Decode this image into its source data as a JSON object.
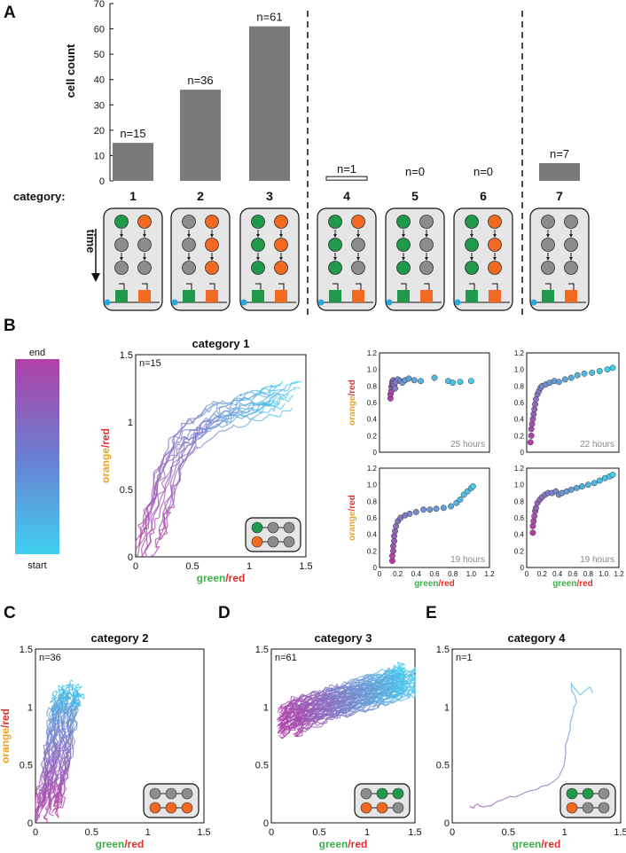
{
  "panel_labels": [
    "A",
    "B",
    "C",
    "D",
    "E"
  ],
  "colors": {
    "bar": "#7a7a7a",
    "green": "#1f9a4a",
    "orange": "#f26a21",
    "gray_node": "#8c8c8c",
    "cell_bg": "#e6e6e6",
    "blue_dot": "#29a8e0",
    "gradient_start": "#3fd0f0",
    "gradient_end": "#b040a8",
    "ylabel_orange": "#f0a020",
    "ylabel_red": "#e03030",
    "xlabel_green": "#3cb04a",
    "hours_gray": "#888888"
  },
  "chart_data": [
    {
      "id": "A",
      "type": "bar",
      "ylabel": "cell count",
      "yticks": [
        0,
        10,
        20,
        30,
        40,
        50,
        60,
        70
      ],
      "ylim": [
        0,
        70
      ],
      "category_prefix": "category:",
      "time_label": "time",
      "categories": [
        "1",
        "2",
        "3",
        "4",
        "5",
        "6",
        "7"
      ],
      "values": [
        15,
        36,
        61,
        1,
        0,
        0,
        7
      ],
      "bar_labels": [
        "n=15",
        "n=36",
        "n=61",
        "n=1",
        "n=0",
        "n=0",
        "n=7"
      ],
      "separators_after": [
        "3",
        "6"
      ]
    },
    {
      "id": "B-colorbar",
      "type": "colorbar",
      "top_label": "end",
      "bottom_label": "start"
    },
    {
      "id": "B",
      "type": "line",
      "title": "category 1",
      "n_label": "n=15",
      "xlabel_parts": [
        "green",
        "/red"
      ],
      "ylabel_parts": [
        "orange",
        "/red"
      ],
      "xlim": [
        0,
        1.5
      ],
      "ylim": [
        0,
        1.5
      ],
      "xticks": [
        "0",
        "0.5",
        "1",
        "1.5"
      ],
      "yticks": [
        "0",
        "0.5",
        "1",
        "1.5"
      ],
      "n_traces": 15,
      "trace_path": [
        [
          0.12,
          0.05
        ],
        [
          0.2,
          0.3
        ],
        [
          0.3,
          0.6
        ],
        [
          0.45,
          0.85
        ],
        [
          0.6,
          0.95
        ],
        [
          0.8,
          1.05
        ],
        [
          1.0,
          1.1
        ],
        [
          1.2,
          1.15
        ],
        [
          1.35,
          1.2
        ]
      ],
      "inset": "cat1"
    },
    {
      "id": "B-s1",
      "type": "scatter",
      "hours": "25 hours",
      "xlim": [
        0,
        1.2
      ],
      "ylim": [
        0,
        1.2
      ],
      "xticks": [],
      "yticks": [
        "0",
        "0.2",
        "0.4",
        "0.6",
        "0.8",
        "1.0",
        "1.2"
      ],
      "ylabel_parts": [
        "orange",
        "/red"
      ],
      "points": [
        [
          0.12,
          0.65
        ],
        [
          0.12,
          0.7
        ],
        [
          0.13,
          0.74
        ],
        [
          0.13,
          0.79
        ],
        [
          0.14,
          0.82
        ],
        [
          0.14,
          0.85
        ],
        [
          0.15,
          0.87
        ],
        [
          0.15,
          0.83
        ],
        [
          0.16,
          0.8
        ],
        [
          0.17,
          0.77
        ],
        [
          0.18,
          0.85
        ],
        [
          0.2,
          0.88
        ],
        [
          0.23,
          0.86
        ],
        [
          0.25,
          0.84
        ],
        [
          0.28,
          0.87
        ],
        [
          0.32,
          0.89
        ],
        [
          0.38,
          0.87
        ],
        [
          0.45,
          0.86
        ],
        [
          0.6,
          0.9
        ],
        [
          0.75,
          0.86
        ],
        [
          0.8,
          0.84
        ],
        [
          0.88,
          0.85
        ],
        [
          1.0,
          0.86
        ]
      ]
    },
    {
      "id": "B-s2",
      "type": "scatter",
      "hours": "22 hours",
      "xlim": [
        0,
        1.2
      ],
      "ylim": [
        0,
        1.2
      ],
      "xticks": [],
      "yticks": [
        "0",
        "0.2",
        "0.4",
        "0.6",
        "0.8",
        "1.0",
        "1.2"
      ],
      "points": [
        [
          0.05,
          0.12
        ],
        [
          0.06,
          0.2
        ],
        [
          0.06,
          0.28
        ],
        [
          0.07,
          0.34
        ],
        [
          0.08,
          0.4
        ],
        [
          0.09,
          0.46
        ],
        [
          0.1,
          0.52
        ],
        [
          0.11,
          0.58
        ],
        [
          0.12,
          0.64
        ],
        [
          0.14,
          0.7
        ],
        [
          0.16,
          0.74
        ],
        [
          0.18,
          0.78
        ],
        [
          0.2,
          0.8
        ],
        [
          0.25,
          0.82
        ],
        [
          0.3,
          0.84
        ],
        [
          0.36,
          0.86
        ],
        [
          0.42,
          0.85
        ],
        [
          0.5,
          0.88
        ],
        [
          0.58,
          0.9
        ],
        [
          0.66,
          0.93
        ],
        [
          0.75,
          0.95
        ],
        [
          0.85,
          0.96
        ],
        [
          0.95,
          0.98
        ],
        [
          1.05,
          1.0
        ],
        [
          1.12,
          1.02
        ]
      ]
    },
    {
      "id": "B-s3",
      "type": "scatter",
      "hours": "19 hours",
      "xlim": [
        0,
        1.2
      ],
      "ylim": [
        0,
        1.2
      ],
      "xticks": [
        "0",
        "0.2",
        "0.4",
        "0.6",
        "0.8",
        "1.0",
        "1.2"
      ],
      "yticks": [
        "0",
        "0.2",
        "0.4",
        "0.6",
        "0.8",
        "1.0",
        "1.2"
      ],
      "xlabel_parts": [
        "green",
        "/red"
      ],
      "ylabel_parts": [
        "orange",
        "/red"
      ],
      "points": [
        [
          0.14,
          0.08
        ],
        [
          0.14,
          0.14
        ],
        [
          0.15,
          0.2
        ],
        [
          0.15,
          0.26
        ],
        [
          0.16,
          0.32
        ],
        [
          0.16,
          0.38
        ],
        [
          0.17,
          0.44
        ],
        [
          0.18,
          0.5
        ],
        [
          0.2,
          0.56
        ],
        [
          0.23,
          0.6
        ],
        [
          0.28,
          0.63
        ],
        [
          0.33,
          0.65
        ],
        [
          0.4,
          0.67
        ],
        [
          0.48,
          0.7
        ],
        [
          0.55,
          0.7
        ],
        [
          0.62,
          0.71
        ],
        [
          0.7,
          0.72
        ],
        [
          0.78,
          0.74
        ],
        [
          0.84,
          0.78
        ],
        [
          0.88,
          0.82
        ],
        [
          0.92,
          0.88
        ],
        [
          0.96,
          0.92
        ],
        [
          1.0,
          0.96
        ],
        [
          1.02,
          0.98
        ]
      ]
    },
    {
      "id": "B-s4",
      "type": "scatter",
      "hours": "19 hours",
      "xlim": [
        0,
        1.2
      ],
      "ylim": [
        0,
        1.2
      ],
      "xticks": [
        "0",
        "0.2",
        "0.4",
        "0.6",
        "0.8",
        "1.0",
        "1.2"
      ],
      "yticks": [
        "0",
        "0.2",
        "0.4",
        "0.6",
        "0.8",
        "1.0",
        "1.2"
      ],
      "xlabel_parts": [
        "green",
        "/red"
      ],
      "points": [
        [
          0.08,
          0.42
        ],
        [
          0.08,
          0.5
        ],
        [
          0.09,
          0.56
        ],
        [
          0.1,
          0.62
        ],
        [
          0.11,
          0.68
        ],
        [
          0.12,
          0.72
        ],
        [
          0.14,
          0.78
        ],
        [
          0.17,
          0.82
        ],
        [
          0.2,
          0.85
        ],
        [
          0.24,
          0.88
        ],
        [
          0.28,
          0.9
        ],
        [
          0.33,
          0.9
        ],
        [
          0.38,
          0.92
        ],
        [
          0.42,
          0.88
        ],
        [
          0.46,
          0.9
        ],
        [
          0.52,
          0.92
        ],
        [
          0.58,
          0.94
        ],
        [
          0.65,
          0.96
        ],
        [
          0.72,
          0.98
        ],
        [
          0.8,
          1.0
        ],
        [
          0.88,
          1.02
        ],
        [
          0.95,
          1.05
        ],
        [
          1.02,
          1.08
        ],
        [
          1.08,
          1.1
        ],
        [
          1.12,
          1.12
        ]
      ]
    },
    {
      "id": "C",
      "type": "line",
      "title": "category 2",
      "n_label": "n=36",
      "xlabel_parts": [
        "green",
        "/red"
      ],
      "ylabel_parts": [
        "orange",
        "/red"
      ],
      "xlim": [
        0,
        1.5
      ],
      "ylim": [
        0,
        1.5
      ],
      "xticks": [
        "0",
        "0.5",
        "1",
        "1.5"
      ],
      "yticks": [
        "0",
        "0.5",
        "1",
        "1.5"
      ],
      "n_traces": 36,
      "trace_path": [
        [
          0.1,
          0.1
        ],
        [
          0.15,
          0.3
        ],
        [
          0.2,
          0.55
        ],
        [
          0.22,
          0.75
        ],
        [
          0.25,
          0.95
        ],
        [
          0.28,
          1.05
        ],
        [
          0.3,
          1.1
        ]
      ],
      "inset": "cat2"
    },
    {
      "id": "D",
      "type": "line",
      "title": "category 3",
      "n_label": "n=61",
      "xlabel_parts": [
        "green",
        "/red"
      ],
      "ylabel_parts": [],
      "xlim": [
        0,
        1.5
      ],
      "ylim": [
        0,
        1.5
      ],
      "xticks": [
        "0",
        "0.5",
        "1",
        "1.5"
      ],
      "yticks": [
        "0",
        "0.5",
        "1",
        "1.5"
      ],
      "n_traces": 61,
      "trace_path": [
        [
          0.15,
          0.85
        ],
        [
          0.3,
          0.95
        ],
        [
          0.5,
          1.0
        ],
        [
          0.7,
          1.05
        ],
        [
          0.9,
          1.1
        ],
        [
          1.1,
          1.15
        ],
        [
          1.3,
          1.2
        ],
        [
          1.45,
          1.25
        ]
      ],
      "inset": "cat3"
    },
    {
      "id": "E",
      "type": "line",
      "title": "category 4",
      "n_label": "n=1",
      "xlabel_parts": [
        "green",
        "/red"
      ],
      "ylabel_parts": [],
      "xlim": [
        0,
        1.5
      ],
      "ylim": [
        0,
        1.5
      ],
      "xticks": [
        "0",
        "0.5",
        "1",
        "1.5"
      ],
      "yticks": [
        "0",
        "0.5",
        "1",
        "1.5"
      ],
      "n_traces": 1,
      "trace_path": [
        [
          0.15,
          0.15
        ],
        [
          0.18,
          0.12
        ],
        [
          0.22,
          0.16
        ],
        [
          0.3,
          0.14
        ],
        [
          0.45,
          0.2
        ],
        [
          0.6,
          0.25
        ],
        [
          0.75,
          0.3
        ],
        [
          0.9,
          0.35
        ],
        [
          0.96,
          0.4
        ],
        [
          1.0,
          0.55
        ],
        [
          1.02,
          0.7
        ],
        [
          1.05,
          0.85
        ],
        [
          1.08,
          0.95
        ],
        [
          1.1,
          1.05
        ],
        [
          1.05,
          1.2
        ],
        [
          1.15,
          1.1
        ],
        [
          1.22,
          1.18
        ],
        [
          1.25,
          1.12
        ]
      ],
      "inset": "cat4"
    }
  ],
  "diagram_cells": {
    "cat1": [
      [
        "green",
        "orange"
      ],
      [
        "gray",
        "gray"
      ],
      [
        "gray",
        "gray"
      ]
    ],
    "cat2": [
      [
        "gray",
        "orange"
      ],
      [
        "gray",
        "orange"
      ],
      [
        "gray",
        "orange"
      ]
    ],
    "cat3": [
      [
        "green",
        "orange"
      ],
      [
        "green",
        "orange"
      ],
      [
        "green",
        "orange"
      ]
    ],
    "cat4": [
      [
        "green",
        "orange"
      ],
      [
        "green",
        "gray"
      ],
      [
        "green",
        "gray"
      ]
    ],
    "cat5": [
      [
        "green",
        "gray"
      ],
      [
        "green",
        "gray"
      ],
      [
        "green",
        "gray"
      ]
    ],
    "cat6": [
      [
        "green",
        "orange"
      ],
      [
        "green",
        "orange"
      ],
      [
        "green",
        "orange"
      ]
    ],
    "cat7": [
      [
        "gray",
        "gray"
      ],
      [
        "gray",
        "gray"
      ],
      [
        "gray",
        "gray"
      ]
    ]
  },
  "insets": {
    "cat1": [
      [
        "green",
        "gray",
        "gray"
      ],
      [
        "orange",
        "gray",
        "gray"
      ]
    ],
    "cat2": [
      [
        "gray",
        "gray",
        "gray"
      ],
      [
        "orange",
        "orange",
        "orange"
      ]
    ],
    "cat3": [
      [
        "gray",
        "green",
        "green"
      ],
      [
        "orange",
        "orange",
        "gray"
      ]
    ],
    "cat4": [
      [
        "green",
        "green",
        "gray"
      ],
      [
        "orange",
        "gray",
        "gray"
      ]
    ]
  }
}
